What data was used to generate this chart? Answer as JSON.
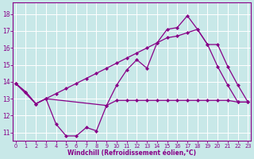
{
  "xlabel": "Windchill (Refroidissement éolien,°C)",
  "bg_color": "#c8e8e8",
  "line_color": "#880088",
  "xticks": [
    0,
    1,
    2,
    3,
    4,
    5,
    6,
    7,
    8,
    9,
    10,
    11,
    12,
    13,
    14,
    15,
    16,
    17,
    18,
    19,
    20,
    21,
    22,
    23
  ],
  "yticks": [
    11,
    12,
    13,
    14,
    15,
    16,
    17,
    18
  ],
  "ylim": [
    10.5,
    18.7
  ],
  "xlim": [
    -0.3,
    23.3
  ],
  "series1_x": [
    0,
    1,
    2,
    3,
    4,
    5,
    6,
    7,
    8,
    9,
    10,
    11,
    12,
    13,
    14,
    15,
    16,
    17,
    18,
    19,
    20,
    21,
    22,
    23
  ],
  "series1_y": [
    13.9,
    13.4,
    12.7,
    13.0,
    11.5,
    10.8,
    10.8,
    11.3,
    11.1,
    12.6,
    13.8,
    14.7,
    15.3,
    14.8,
    16.3,
    17.1,
    17.2,
    17.9,
    17.1,
    16.2,
    14.9,
    13.8,
    12.8,
    12.8
  ],
  "series2_x": [
    0,
    2,
    3,
    9,
    10,
    11,
    12,
    13,
    14,
    15,
    16,
    17,
    18,
    19,
    20,
    21,
    22,
    23
  ],
  "series2_y": [
    13.9,
    12.7,
    13.0,
    12.6,
    12.9,
    12.9,
    12.9,
    12.9,
    12.9,
    12.9,
    12.9,
    12.9,
    12.9,
    12.9,
    12.9,
    12.9,
    12.8,
    12.8
  ],
  "series3_x": [
    0,
    1,
    2,
    3,
    4,
    5,
    6,
    7,
    8,
    9,
    10,
    11,
    12,
    13,
    14,
    15,
    16,
    17,
    18,
    19,
    20,
    21,
    22,
    23
  ],
  "series3_y": [
    13.9,
    13.4,
    12.7,
    13.0,
    13.3,
    13.6,
    13.9,
    14.2,
    14.5,
    14.8,
    15.1,
    15.4,
    15.7,
    16.0,
    16.3,
    16.6,
    16.7,
    16.9,
    17.1,
    16.2,
    16.2,
    14.9,
    13.8,
    12.8
  ]
}
